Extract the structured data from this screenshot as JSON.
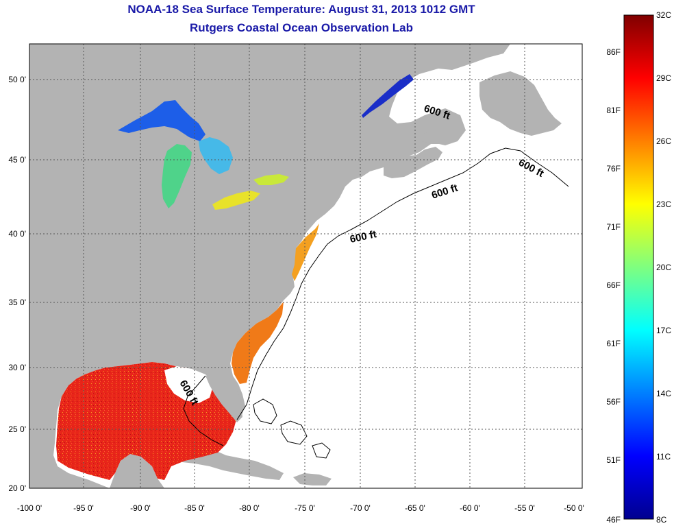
{
  "title": "NOAA-18 Sea Surface Temperature:  August 31, 2013 1012 GMT",
  "subtitle": "Rutgers Coastal Ocean Observation Lab",
  "map": {
    "lon_ticks": [
      "-100 0'",
      "-95 0'",
      "-90 0'",
      "-85 0'",
      "-80 0'",
      "-75 0'",
      "-70 0'",
      "-65 0'",
      "-60 0'",
      "-55 0'",
      "-50 0'"
    ],
    "lat_ticks": [
      "50 0'",
      "45 0'",
      "40 0'",
      "35 0'",
      "30 0'",
      "25 0'",
      "20 0'"
    ],
    "contour_labels": [
      "600 ft",
      "600 ft",
      "600 ft",
      "600 ft",
      "600 ft"
    ],
    "colors": {
      "land": "#b3b3b3",
      "ocean_no_data": "#ffffff",
      "gulf_sst": "#e8251a",
      "atlantic_coast_sst": "#f07a18",
      "lake_superior": "#1d5ee8",
      "lake_michigan": "#4fd38a",
      "lake_erie": "#e8e22a",
      "st_lawrence": "#1a2ec8"
    }
  },
  "colorbar": {
    "celsius_labels": [
      "32C",
      "29C",
      "26C",
      "23C",
      "20C",
      "17C",
      "14C",
      "11C",
      "8C"
    ],
    "fahrenheit_labels": [
      "86F",
      "81F",
      "76F",
      "71F",
      "66F",
      "61F",
      "56F",
      "51F",
      "46F"
    ],
    "range_c": [
      8,
      32
    ]
  }
}
